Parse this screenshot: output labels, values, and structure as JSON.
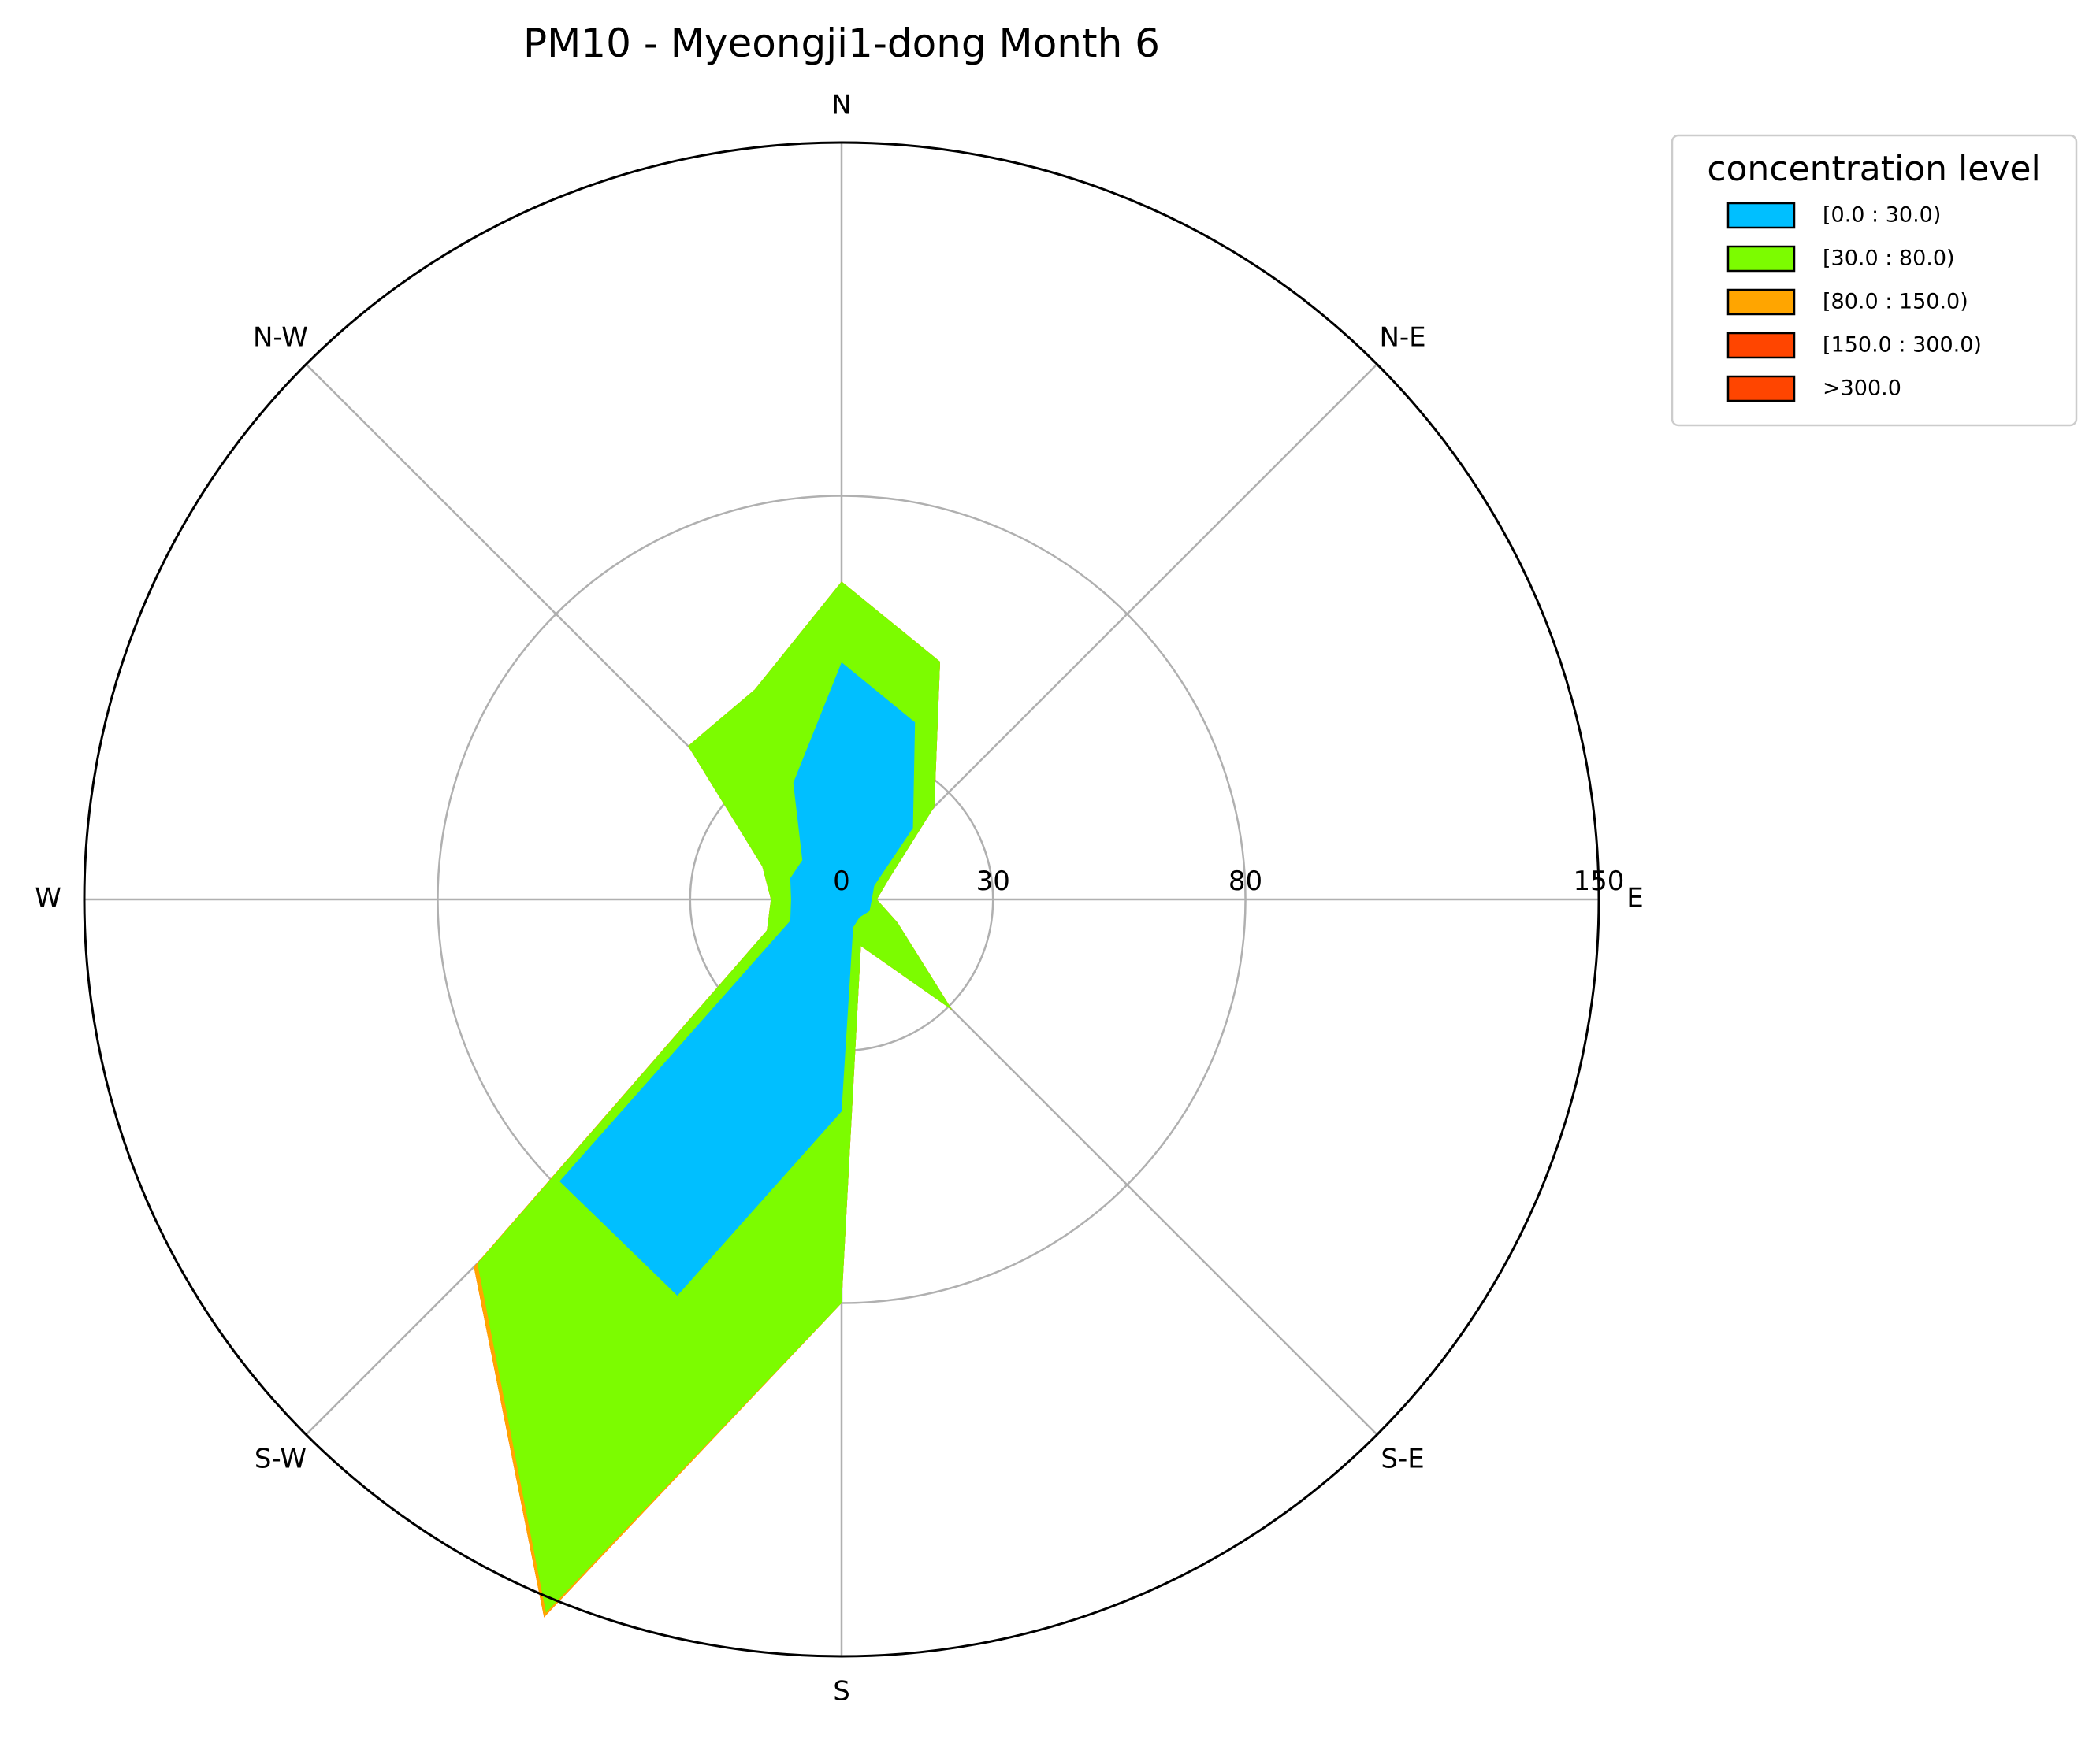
{
  "chart_data": {
    "type": "area",
    "subtype": "polar-stacked-area (wind rose)",
    "title": "PM10 - Myeongji1-dong Month 6",
    "directions": [
      "N",
      "N-E",
      "E",
      "S-E",
      "S",
      "S-W",
      "W",
      "N-W"
    ],
    "radial_tick_labels": [
      "0",
      "30",
      "80",
      "150"
    ],
    "radial_ticks": [
      0,
      30,
      80,
      150
    ],
    "rmax": 150,
    "grid": true,
    "legend": {
      "title": "concentration level",
      "placement": "upper-right, outside plot",
      "entries": [
        "[0.0 : 30.0)",
        "[30.0 : 80.0)",
        "[80.0 : 150.0)",
        "[150.0 : 300.0)",
        ">300.0"
      ]
    },
    "colors": [
      "#00bfff",
      "#7cfc00",
      "#ffa500",
      "#ff4500",
      "#ff4500"
    ],
    "angles_deg": [
      0,
      22.5,
      45,
      67.5,
      90,
      112.5,
      135,
      157.5,
      180,
      202.5,
      225,
      247.5,
      270,
      292.5,
      315,
      337.5
    ],
    "series": [
      {
        "name": "[0.0 : 30.0)",
        "values": [
          47,
          38,
          20,
          7,
          6,
          6,
          5,
          6,
          42,
          85,
          79,
          11,
          10,
          11,
          11,
          25
        ]
      },
      {
        "name": "[30.0 : 80.0)",
        "values": [
          63,
          51,
          26,
          10,
          7,
          12,
          31,
          10,
          80,
          153,
          102,
          16,
          14,
          17,
          43,
          45
        ]
      },
      {
        "name": "[80.0 : 150.0)",
        "values": [
          63,
          51,
          26,
          10,
          7,
          12,
          31,
          10,
          80,
          154,
          103,
          16,
          14,
          17,
          43,
          45
        ]
      },
      {
        "name": "[150.0 : 300.0)",
        "values": [
          63,
          51,
          26,
          10,
          7,
          12,
          31,
          10,
          80,
          154,
          103,
          16,
          14,
          17,
          43,
          45
        ]
      },
      {
        "name": ">300.0",
        "values": [
          63,
          51,
          26,
          10,
          7,
          12,
          31,
          10,
          80,
          154,
          103,
          16,
          14,
          17,
          43,
          45
        ]
      }
    ]
  }
}
